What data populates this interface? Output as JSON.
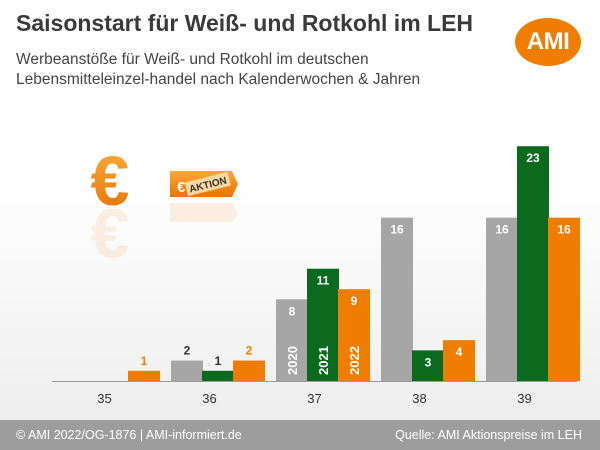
{
  "header": {
    "title": "Saisonstart für Weiß- und Rotkohl im LEH",
    "subtitle": "Werbeanstöße für Weiß- und Rotkohl im deutschen Lebensmitteleinzel-handel nach Kalenderwochen & Jahren",
    "logo_text": "AMI"
  },
  "decor": {
    "euro_symbol": "€",
    "tag_euro": "€",
    "tag_text": "AKTION"
  },
  "chart_data": {
    "type": "bar",
    "title": "Saisonstart für Weiß- und Rotkohl im LEH",
    "categories": [
      "35",
      "36",
      "37",
      "38",
      "39"
    ],
    "series": [
      {
        "name": "2020",
        "color": "#a6a6a6",
        "values": [
          0,
          2,
          8,
          16,
          16
        ]
      },
      {
        "name": "2021",
        "color": "#0b6a1e",
        "values": [
          0,
          1,
          11,
          3,
          23
        ]
      },
      {
        "name": "2022",
        "color": "#f07d00",
        "values": [
          1,
          2,
          9,
          4,
          16
        ]
      }
    ],
    "ylim": [
      0,
      24
    ],
    "grid": false,
    "legend": "series names printed inside bars of week 37",
    "xlabel": "",
    "ylabel": ""
  },
  "footer": {
    "left": "© AMI 2022/OG-1876 | AMI-informiert.de",
    "right": "Quelle: AMI Aktionspreise im LEH"
  }
}
